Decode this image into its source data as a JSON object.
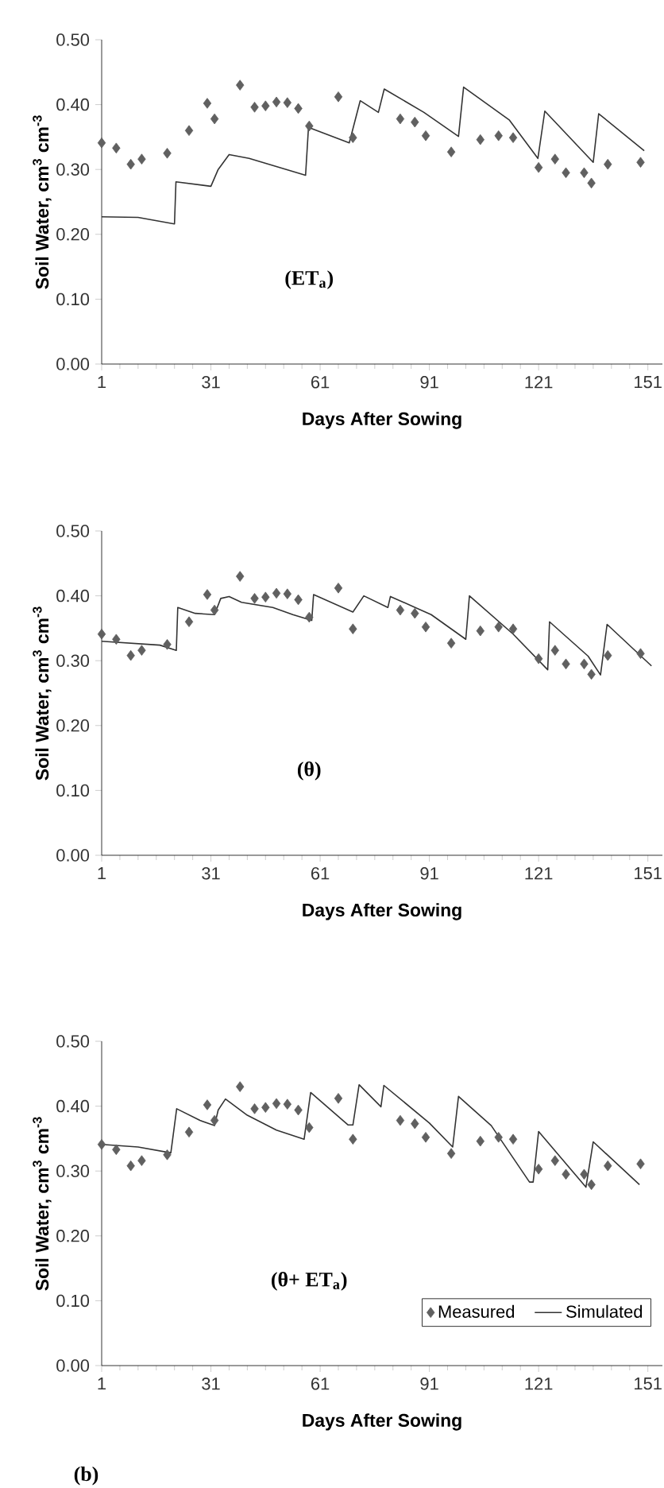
{
  "chart_data": [
    {
      "type": "line",
      "xlabel": "Days After Sowing",
      "ylabel": "Soil Water, cm$^{3}$ cm$^{-3}$",
      "annotations": [
        "(ET$_{a}$)"
      ],
      "xlim": [
        1,
        155
      ],
      "xticks": [
        1,
        31,
        61,
        91,
        121,
        151
      ],
      "ylim": [
        0,
        0.5
      ],
      "yticks": [
        {
          "value": 0,
          "label": "0.00"
        },
        {
          "value": 0.1,
          "label": "0.10"
        },
        {
          "value": 0.2,
          "label": "0.20"
        },
        {
          "value": 0.3,
          "label": "0.30"
        },
        {
          "value": 0.4,
          "label": "0.40"
        },
        {
          "value": 0.5,
          "label": "0.50"
        }
      ],
      "grid": false,
      "series": [
        {
          "type": "scatter",
          "marker": "diamond",
          "color": "#606060",
          "x": [
            1,
            5,
            9,
            12,
            19,
            25,
            30,
            32,
            39,
            43,
            46,
            49,
            52,
            55,
            58,
            66,
            70,
            83,
            87,
            90,
            97,
            105,
            110,
            114,
            121,
            125.5,
            128.5,
            133.5,
            135.5,
            140,
            149
          ],
          "values": [
            0.341,
            0.333,
            0.308,
            0.316,
            0.325,
            0.36,
            0.402,
            0.378,
            0.43,
            0.396,
            0.398,
            0.404,
            0.403,
            0.394,
            0.367,
            0.412,
            0.349,
            0.378,
            0.373,
            0.352,
            0.327,
            0.346,
            0.352,
            0.349,
            0.303,
            0.316,
            0.295,
            0.295,
            0.279,
            0.308,
            0.311
          ]
        },
        {
          "marker": "none",
          "line_style": "solid",
          "color": "#333333",
          "x": [
            1,
            11,
            21,
            21.4,
            31,
            33,
            36,
            41.5,
            57,
            57.8,
            69,
            72,
            77,
            78.6,
            89.5,
            99,
            100.4,
            113,
            120.8,
            122.7,
            136,
            137.5,
            150
          ],
          "values": [
            0.227,
            0.226,
            0.216,
            0.281,
            0.274,
            0.3,
            0.323,
            0.317,
            0.291,
            0.365,
            0.341,
            0.406,
            0.388,
            0.424,
            0.388,
            0.351,
            0.427,
            0.376,
            0.317,
            0.39,
            0.311,
            0.386,
            0.329
          ]
        }
      ]
    },
    {
      "type": "line",
      "xlabel": "Days After Sowing",
      "ylabel": "Soil Water, cm$^{3}$ cm$^{-3}$",
      "annotations": [
        "(θ)"
      ],
      "xlim": [
        1,
        155
      ],
      "xticks": [
        1,
        31,
        61,
        91,
        121,
        151
      ],
      "ylim": [
        0,
        0.5
      ],
      "yticks": [
        {
          "value": 0,
          "label": "0.00"
        },
        {
          "value": 0.1,
          "label": "0.10"
        },
        {
          "value": 0.2,
          "label": "0.20"
        },
        {
          "value": 0.3,
          "label": "0.30"
        },
        {
          "value": 0.4,
          "label": "0.40"
        },
        {
          "value": 0.5,
          "label": "0.50"
        }
      ],
      "grid": false,
      "series": [
        {
          "type": "scatter",
          "marker": "diamond",
          "color": "#606060",
          "x": [
            1,
            5,
            9,
            12,
            19,
            25,
            30,
            32,
            39,
            43,
            46,
            49,
            52,
            55,
            58,
            66,
            70,
            83,
            87,
            90,
            97,
            105,
            110,
            114,
            121,
            125.5,
            128.5,
            133.5,
            135.5,
            140,
            149
          ],
          "values": [
            0.341,
            0.333,
            0.308,
            0.316,
            0.325,
            0.36,
            0.402,
            0.378,
            0.43,
            0.396,
            0.398,
            0.404,
            0.403,
            0.394,
            0.367,
            0.412,
            0.349,
            0.378,
            0.373,
            0.352,
            0.327,
            0.346,
            0.352,
            0.349,
            0.303,
            0.316,
            0.295,
            0.295,
            0.279,
            0.308,
            0.311
          ]
        },
        {
          "marker": "none",
          "line_style": "solid",
          "color": "#333333",
          "x": [
            1,
            17,
            21.5,
            21.9,
            26.7,
            32,
            33.7,
            36,
            39.4,
            48,
            53.5,
            58.7,
            59.2,
            70,
            73,
            79.6,
            80.3,
            91.5,
            101,
            102,
            114,
            123.5,
            124,
            134.6,
            138,
            139.8,
            152
          ],
          "values": [
            0.33,
            0.324,
            0.316,
            0.382,
            0.373,
            0.371,
            0.396,
            0.399,
            0.39,
            0.382,
            0.371,
            0.362,
            0.402,
            0.375,
            0.4,
            0.382,
            0.399,
            0.371,
            0.333,
            0.4,
            0.341,
            0.286,
            0.36,
            0.307,
            0.278,
            0.356,
            0.292
          ]
        }
      ]
    },
    {
      "type": "line",
      "xlabel": "Days After Sowing",
      "ylabel": "Soil Water, cm$^{3}$ cm$^{-3}$",
      "annotations": [
        "(θ+ ET$_{a}$)",
        "(b)"
      ],
      "xlim": [
        1,
        155
      ],
      "xticks": [
        1,
        31,
        61,
        91,
        121,
        151
      ],
      "ylim": [
        0,
        0.5
      ],
      "yticks": [
        {
          "value": 0,
          "label": "0.00"
        },
        {
          "value": 0.1,
          "label": "0.10"
        },
        {
          "value": 0.2,
          "label": "0.20"
        },
        {
          "value": 0.3,
          "label": "0.30"
        },
        {
          "value": 0.4,
          "label": "0.40"
        },
        {
          "value": 0.5,
          "label": "0.50"
        }
      ],
      "grid": false,
      "legend": "bottom right",
      "series": [
        {
          "name": "Measured",
          "type": "scatter",
          "marker": "diamond",
          "color": "#606060",
          "x": [
            1,
            5,
            9,
            12,
            19,
            25,
            30,
            32,
            39,
            43,
            46,
            49,
            52,
            55,
            58,
            66,
            70,
            83,
            87,
            90,
            97,
            105,
            110,
            114,
            121,
            125.5,
            128.5,
            133.5,
            135.5,
            140,
            149
          ],
          "values": [
            0.341,
            0.333,
            0.308,
            0.316,
            0.325,
            0.36,
            0.402,
            0.378,
            0.43,
            0.396,
            0.398,
            0.404,
            0.403,
            0.394,
            0.367,
            0.412,
            0.349,
            0.378,
            0.373,
            0.352,
            0.327,
            0.346,
            0.352,
            0.349,
            0.303,
            0.316,
            0.295,
            0.295,
            0.279,
            0.308,
            0.311
          ]
        },
        {
          "name": "Simulated",
          "marker": "none",
          "line_style": "solid",
          "color": "#333333",
          "x": [
            1,
            11,
            20,
            21.6,
            28,
            32,
            33,
            35,
            41,
            49,
            56.6,
            58.4,
            68.7,
            70,
            71.7,
            77.7,
            78.5,
            91,
            97.4,
            99,
            108,
            118.5,
            119.5,
            121,
            134,
            136,
            148.7
          ],
          "values": [
            0.341,
            0.337,
            0.328,
            0.396,
            0.378,
            0.37,
            0.394,
            0.411,
            0.386,
            0.363,
            0.349,
            0.421,
            0.371,
            0.371,
            0.433,
            0.399,
            0.432,
            0.374,
            0.337,
            0.415,
            0.37,
            0.283,
            0.283,
            0.361,
            0.275,
            0.345,
            0.279
          ]
        }
      ]
    }
  ]
}
